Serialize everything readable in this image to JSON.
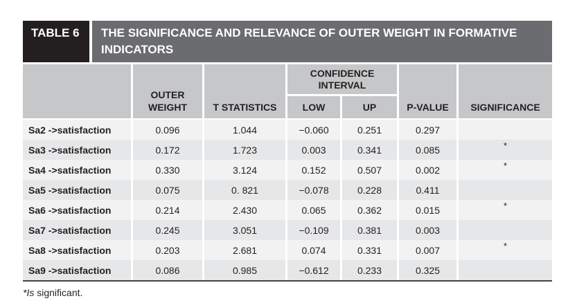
{
  "colors": {
    "tag_bg": "#231f20",
    "title_bar_bg": "#6b6c6f",
    "header_bg": "#c6c7c9",
    "row_light": "#f2f2f3",
    "row_dark": "#e6e7e8",
    "bottom_rule": "#454546"
  },
  "table": {
    "tag": "TABLE 6",
    "title": "THE SIGNIFICANCE AND RELEVANCE OF OUTER WEIGHT IN FORMATIVE INDICATORS",
    "columns": {
      "row_header": "",
      "outer_weight": "OUTER WEIGHT",
      "t_statistics": "T STATISTICS",
      "confidence_interval": "CONFIDENCE INTERVAL",
      "ci_low": "LOW",
      "ci_up": "UP",
      "p_value": "P-VALUE",
      "significance": "SIGNIFICANCE"
    },
    "rows": [
      {
        "label": "Sa2 ->satisfaction",
        "outer_weight": "0.096",
        "t_statistics": "1.044",
        "ci_low": "−0.060",
        "ci_up": "0.251",
        "p_value": "0.297",
        "significance": ""
      },
      {
        "label": "Sa3 ->satisfaction",
        "outer_weight": "0.172",
        "t_statistics": "1.723",
        "ci_low": "0.003",
        "ci_up": "0.341",
        "p_value": "0.085",
        "significance": "*"
      },
      {
        "label": "Sa4 ->satisfaction",
        "outer_weight": "0.330",
        "t_statistics": "3.124",
        "ci_low": "0.152",
        "ci_up": "0.507",
        "p_value": "0.002",
        "significance": "*"
      },
      {
        "label": "Sa5 ->satisfaction",
        "outer_weight": "0.075",
        "t_statistics": "0. 821",
        "ci_low": "−0.078",
        "ci_up": "0.228",
        "p_value": "0.411",
        "significance": ""
      },
      {
        "label": "Sa6 ->satisfaction",
        "outer_weight": "0.214",
        "t_statistics": "2.430",
        "ci_low": "0.065",
        "ci_up": "0.362",
        "p_value": "0.015",
        "significance": "*"
      },
      {
        "label": "Sa7 ->satisfaction",
        "outer_weight": "0.245",
        "t_statistics": "3.051",
        "ci_low": "−0.109",
        "ci_up": "0.381",
        "p_value": "0.003",
        "significance": ""
      },
      {
        "label": "Sa8 ->satisfaction",
        "outer_weight": "0.203",
        "t_statistics": "2.681",
        "ci_low": "0.074",
        "ci_up": "0.331",
        "p_value": "0.007",
        "significance": "*"
      },
      {
        "label": "Sa9 ->satisfaction",
        "outer_weight": "0.086",
        "t_statistics": "0.985",
        "ci_low": "−0.612",
        "ci_up": "0.233",
        "p_value": "0.325",
        "significance": ""
      }
    ],
    "footnote": {
      "marker": "*Is",
      "text": " significant."
    }
  }
}
